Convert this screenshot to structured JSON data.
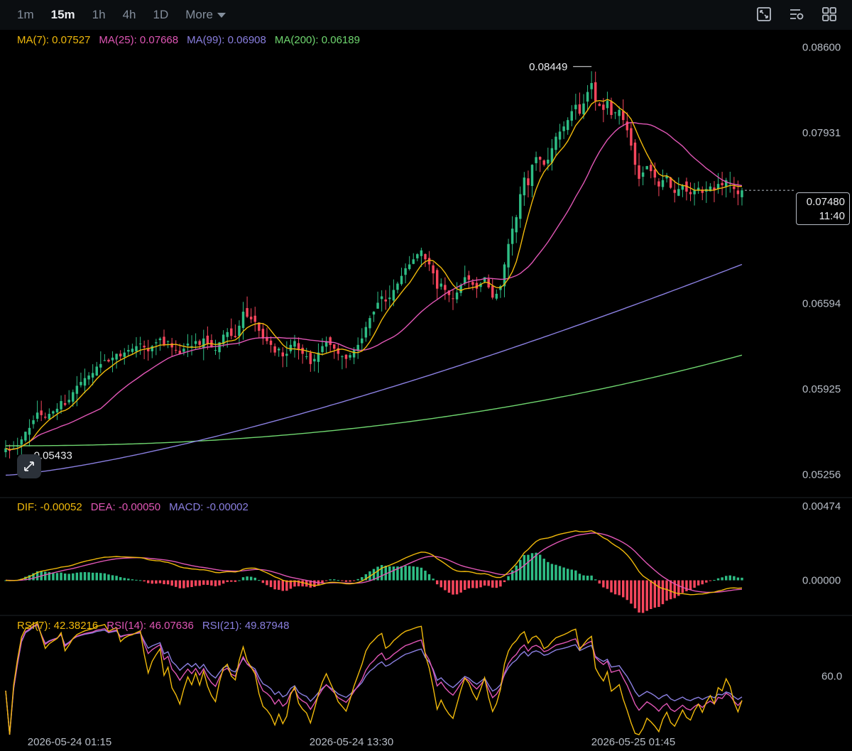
{
  "toolbar": {
    "timeframes": [
      "1m",
      "15m",
      "1h",
      "4h",
      "1D"
    ],
    "active_timeframe": "15m",
    "more_label": "More",
    "icons": [
      "chart-settings-icon",
      "indicator-settings-icon",
      "layout-grid-icon"
    ]
  },
  "legends": {
    "ma": [
      {
        "label": "MA(7): 0.07527",
        "color": "#f0b90b"
      },
      {
        "label": "MA(25): 0.07668",
        "color": "#e056b5"
      },
      {
        "label": "MA(99): 0.06908",
        "color": "#8a7fe0"
      },
      {
        "label": "MA(200): 0.06189",
        "color": "#6fd66f"
      }
    ],
    "macd": [
      {
        "label": "DIF: -0.00052",
        "color": "#f0b90b"
      },
      {
        "label": "DEA: -0.00050",
        "color": "#e056b5"
      },
      {
        "label": "MACD: -0.00002",
        "color": "#8a7fe0"
      }
    ],
    "rsi": [
      {
        "label": "RSI(7): 42.38216",
        "color": "#f0b90b"
      },
      {
        "label": "RSI(14): 46.07636",
        "color": "#e056b5"
      },
      {
        "label": "RSI(21): 49.87948",
        "color": "#8a7fe0"
      }
    ]
  },
  "current_price": {
    "price": "0.07480",
    "countdown": "11:40"
  },
  "colors": {
    "up": "#2ebd85",
    "down": "#f6465d",
    "grid": "#1e2329"
  },
  "chart_data": [
    {
      "type": "line",
      "name": "price",
      "y_ticks": [
        "0.08600",
        "0.07931",
        "0.06594",
        "0.05925",
        "0.05256"
      ],
      "ylim": [
        0.0508,
        0.0872
      ],
      "x_labels": [
        "2026-05-24 01:15",
        "2026-05-24 13:30",
        "2026-05-25 01:45"
      ],
      "annotations": {
        "high": "0.08449",
        "low": "0.05433"
      },
      "close": [
        0.0546,
        0.0544,
        0.0546,
        0.0548,
        0.0553,
        0.0559,
        0.0562,
        0.0568,
        0.0574,
        0.0572,
        0.057,
        0.0573,
        0.0575,
        0.0577,
        0.0583,
        0.058,
        0.0584,
        0.059,
        0.0595,
        0.0598,
        0.0601,
        0.0603,
        0.0605,
        0.061,
        0.0612,
        0.0615,
        0.0614,
        0.0617,
        0.062,
        0.0618,
        0.0621,
        0.0623,
        0.0624,
        0.0626,
        0.0628,
        0.0625,
        0.0622,
        0.0626,
        0.0629,
        0.0632,
        0.0627,
        0.063,
        0.0625,
        0.0623,
        0.062,
        0.0624,
        0.0628,
        0.0626,
        0.063,
        0.0627,
        0.0632,
        0.0628,
        0.0625,
        0.0623,
        0.0629,
        0.0635,
        0.0637,
        0.0634,
        0.0633,
        0.0642,
        0.0653,
        0.0649,
        0.0647,
        0.0645,
        0.0638,
        0.0632,
        0.063,
        0.0627,
        0.0621,
        0.0624,
        0.0618,
        0.062,
        0.0627,
        0.063,
        0.0623,
        0.062,
        0.0618,
        0.0612,
        0.0616,
        0.0621,
        0.0626,
        0.063,
        0.0627,
        0.0624,
        0.062,
        0.0618,
        0.0616,
        0.0619,
        0.0623,
        0.0627,
        0.0632,
        0.0641,
        0.0648,
        0.0653,
        0.066,
        0.0665,
        0.0661,
        0.0664,
        0.067,
        0.0675,
        0.0681,
        0.0687,
        0.069,
        0.0694,
        0.0698,
        0.0701,
        0.0694,
        0.069,
        0.0683,
        0.0671,
        0.0675,
        0.067,
        0.0666,
        0.0663,
        0.0668,
        0.0674,
        0.068,
        0.0678,
        0.0674,
        0.0671,
        0.0675,
        0.068,
        0.0672,
        0.0664,
        0.0667,
        0.0673,
        0.069,
        0.0706,
        0.0718,
        0.0727,
        0.0745,
        0.0758,
        0.0752,
        0.0768,
        0.0774,
        0.0772,
        0.0768,
        0.0772,
        0.0781,
        0.079,
        0.0794,
        0.0798,
        0.0803,
        0.081,
        0.0815,
        0.0808,
        0.0816,
        0.0825,
        0.0832,
        0.0818,
        0.0814,
        0.0811,
        0.0818,
        0.0807,
        0.0809,
        0.0811,
        0.0803,
        0.0795,
        0.0783,
        0.0768,
        0.0757,
        0.0762,
        0.0767,
        0.0763,
        0.0758,
        0.0751,
        0.0756,
        0.0759,
        0.075,
        0.0746,
        0.0749,
        0.0752,
        0.0747,
        0.0745,
        0.0748,
        0.075,
        0.0746,
        0.0749,
        0.0751,
        0.0748,
        0.0753,
        0.0752,
        0.0756,
        0.0754,
        0.0749,
        0.0745,
        0.0748
      ]
    },
    {
      "type": "bar",
      "name": "MACD",
      "y_ticks": [
        "0.00474",
        "0.00000"
      ],
      "ylim": [
        -0.0022,
        0.0052
      ]
    },
    {
      "type": "line",
      "name": "RSI",
      "y_ticks": [
        "60.0"
      ],
      "ylim": [
        20,
        100
      ]
    }
  ]
}
